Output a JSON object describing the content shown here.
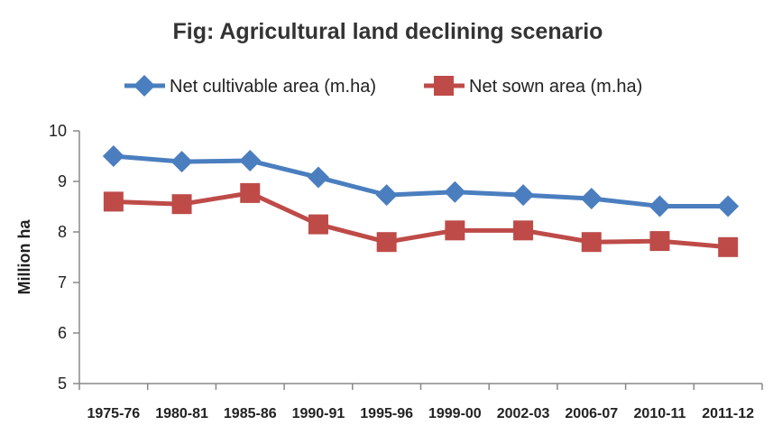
{
  "chart_data": {
    "type": "line",
    "title": "Fig: Agricultural land declining scenario",
    "ylabel": "Million ha",
    "xlabel": "",
    "categories": [
      "1975-76",
      "1980-81",
      "1985-86",
      "1990-91",
      "1995-96",
      "1999-00",
      "2002-03",
      "2006-07",
      "2010-11",
      "2011-12"
    ],
    "ylim": [
      5,
      10
    ],
    "yticks": [
      5,
      6,
      7,
      8,
      9,
      10
    ],
    "grid": false,
    "legend": "top",
    "series": [
      {
        "name": "Net cultivable area (m.ha)",
        "color": "#4a7ebf",
        "marker": "diamond",
        "values": [
          9.5,
          9.39,
          9.41,
          9.08,
          8.73,
          8.79,
          8.73,
          8.66,
          8.51,
          8.51
        ]
      },
      {
        "name": "Net sown area (m.ha)",
        "color": "#be4b48",
        "marker": "square",
        "values": [
          8.6,
          8.55,
          8.77,
          8.15,
          7.8,
          8.03,
          8.03,
          7.8,
          7.82,
          7.7
        ]
      }
    ]
  }
}
